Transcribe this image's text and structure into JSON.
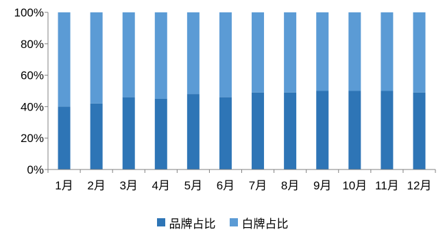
{
  "chart_data": {
    "type": "bar",
    "stacked": true,
    "percent": true,
    "categories": [
      "1月",
      "2月",
      "3月",
      "4月",
      "5月",
      "6月",
      "7月",
      "8月",
      "9月",
      "10月",
      "11月",
      "12月"
    ],
    "series": [
      {
        "name": "品牌占比",
        "color": "#2E75B6",
        "values": [
          40,
          42,
          46,
          45,
          48,
          46,
          49,
          49,
          50,
          50,
          50,
          49
        ]
      },
      {
        "name": "白牌占比",
        "color": "#5B9BD5",
        "values": [
          60,
          58,
          54,
          55,
          52,
          54,
          51,
          51,
          50,
          50,
          50,
          51
        ]
      }
    ],
    "ylim": [
      0,
      100
    ],
    "yticks": [
      "0%",
      "20%",
      "40%",
      "60%",
      "80%",
      "100%"
    ],
    "ytick_values": [
      0,
      20,
      40,
      60,
      80,
      100
    ],
    "grid": false,
    "legend_position": "bottom"
  }
}
